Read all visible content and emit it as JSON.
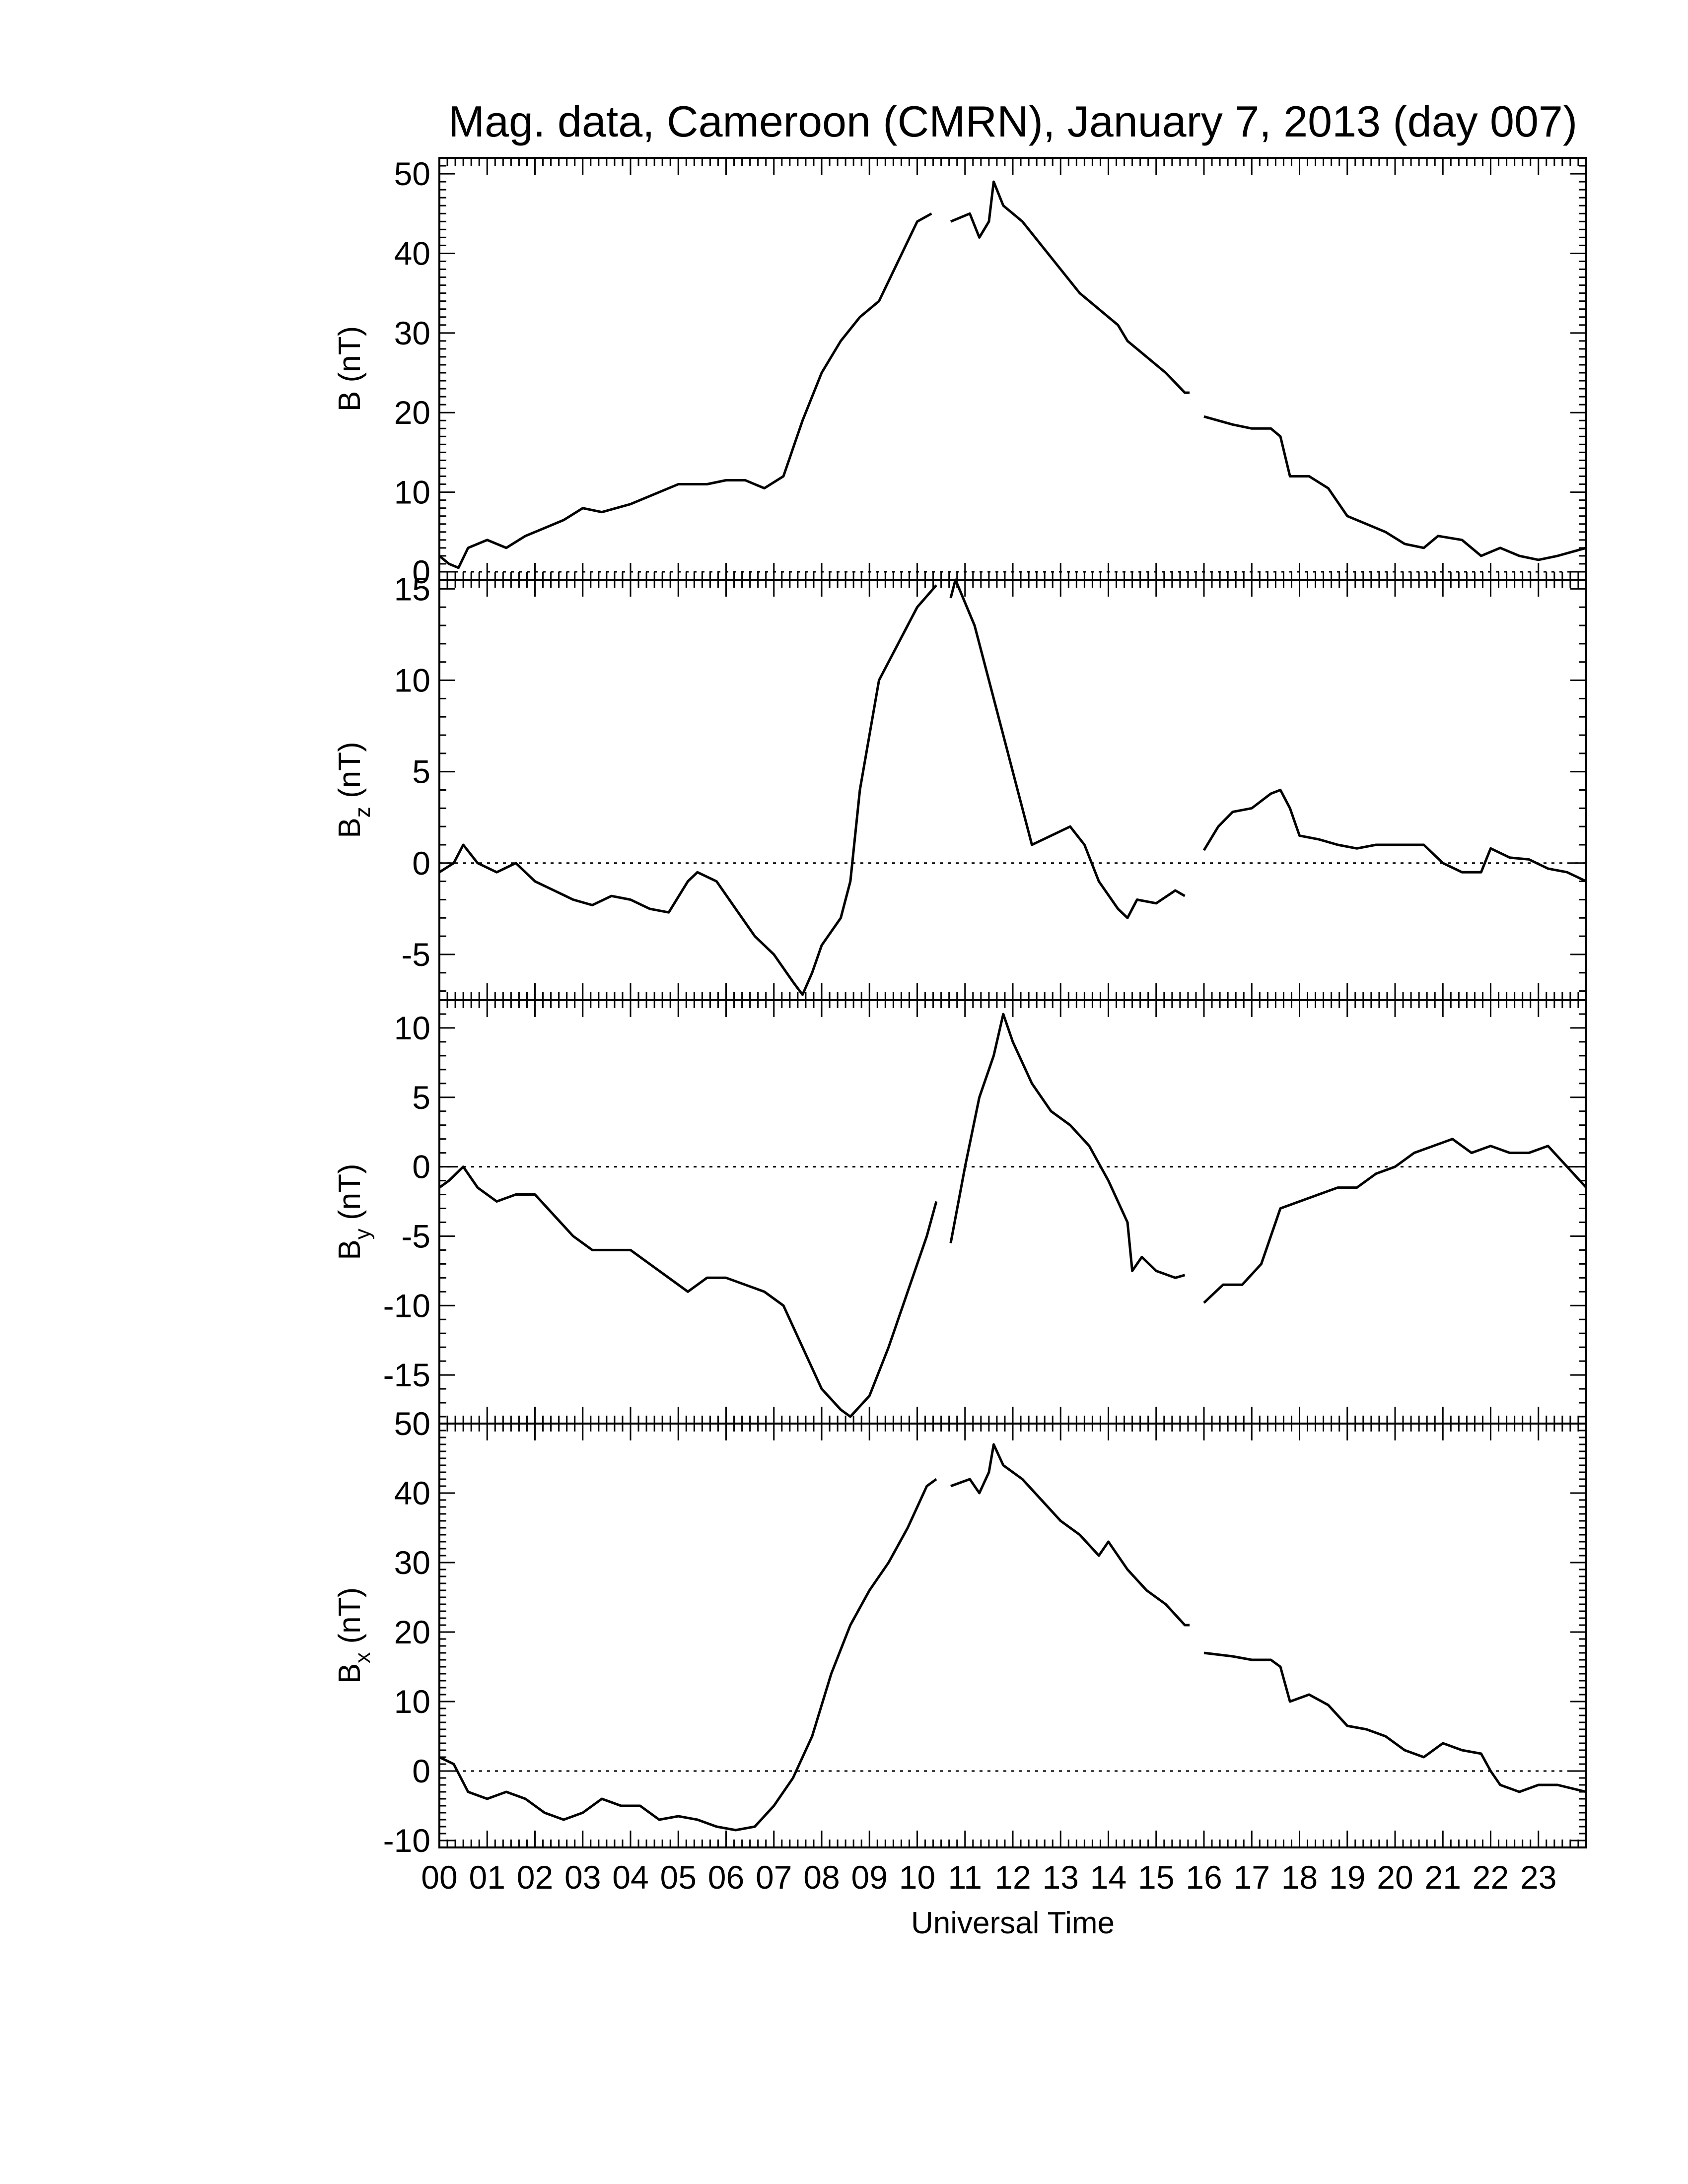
{
  "chart_data": {
    "title": "Mag. data, Cameroon (CMRN), January 7, 2013 (day 007)",
    "type": "line",
    "xlabel": "Universal Time",
    "x_unit": "hour (UT)",
    "xlim": [
      0,
      24
    ],
    "x_tick_labels": [
      "00",
      "01",
      "02",
      "03",
      "04",
      "05",
      "06",
      "07",
      "08",
      "09",
      "10",
      "11",
      "12",
      "13",
      "14",
      "15",
      "16",
      "17",
      "18",
      "19",
      "20",
      "21",
      "22",
      "23"
    ],
    "panels": [
      {
        "key": "B",
        "ylabel_main": "B",
        "ylabel_sub": "",
        "ylabel_unit": " (nT)",
        "ylim": [
          -1,
          52
        ],
        "yticks": [
          0,
          10,
          20,
          30,
          40,
          50
        ],
        "zero_line": true,
        "segments": [
          [
            [
              0,
              2
            ],
            [
              0.2,
              1
            ],
            [
              0.4,
              0.5
            ],
            [
              0.6,
              3
            ],
            [
              1,
              4
            ],
            [
              1.4,
              3
            ],
            [
              1.8,
              4.5
            ],
            [
              2.2,
              5.5
            ],
            [
              2.6,
              6.5
            ],
            [
              3,
              8
            ],
            [
              3.4,
              7.5
            ],
            [
              4,
              8.5
            ],
            [
              4.4,
              9.5
            ],
            [
              5,
              11
            ],
            [
              5.6,
              11
            ],
            [
              6,
              11.5
            ],
            [
              6.4,
              11.5
            ],
            [
              6.8,
              10.5
            ],
            [
              7.2,
              12
            ],
            [
              7.6,
              19
            ],
            [
              8,
              25
            ],
            [
              8.4,
              29
            ],
            [
              8.8,
              32
            ],
            [
              9.2,
              34
            ],
            [
              9.6,
              39
            ],
            [
              10,
              44
            ],
            [
              10.3,
              45
            ]
          ],
          [
            [
              10.7,
              44
            ],
            [
              11.1,
              45
            ],
            [
              11.3,
              42
            ],
            [
              11.5,
              44
            ],
            [
              11.6,
              49
            ],
            [
              11.8,
              46
            ],
            [
              12.2,
              44
            ],
            [
              12.6,
              41
            ],
            [
              13,
              38
            ],
            [
              13.4,
              35
            ],
            [
              13.8,
              33
            ],
            [
              14.2,
              31
            ],
            [
              14.4,
              29
            ],
            [
              14.8,
              27
            ],
            [
              15.2,
              25
            ],
            [
              15.6,
              22.5
            ],
            [
              15.7,
              22.5
            ]
          ],
          [
            [
              16.0,
              19.5
            ],
            [
              16.6,
              18.5
            ],
            [
              17,
              18
            ],
            [
              17.4,
              18
            ],
            [
              17.6,
              17
            ],
            [
              17.8,
              12
            ],
            [
              18.2,
              12
            ],
            [
              18.6,
              10.5
            ],
            [
              19,
              7
            ],
            [
              19.4,
              6
            ],
            [
              19.8,
              5
            ],
            [
              20.2,
              3.5
            ],
            [
              20.6,
              3
            ],
            [
              20.9,
              4.5
            ],
            [
              21.4,
              4
            ],
            [
              21.8,
              2
            ],
            [
              22.2,
              3
            ],
            [
              22.6,
              2
            ],
            [
              23,
              1.5
            ],
            [
              23.4,
              2
            ],
            [
              24,
              3
            ]
          ]
        ]
      },
      {
        "key": "Bz",
        "ylabel_main": "B",
        "ylabel_sub": "z",
        "ylabel_unit": " (nT)",
        "ylim": [
          -7.5,
          15.5
        ],
        "yticks": [
          -5,
          0,
          5,
          10,
          15
        ],
        "zero_line": true,
        "segments": [
          [
            [
              0,
              -0.5
            ],
            [
              0.3,
              0
            ],
            [
              0.5,
              1
            ],
            [
              0.8,
              0
            ],
            [
              1.2,
              -0.5
            ],
            [
              1.6,
              0
            ],
            [
              2,
              -1
            ],
            [
              2.4,
              -1.5
            ],
            [
              2.8,
              -2
            ],
            [
              3.2,
              -2.3
            ],
            [
              3.6,
              -1.8
            ],
            [
              4,
              -2
            ],
            [
              4.4,
              -2.5
            ],
            [
              4.8,
              -2.7
            ],
            [
              5.2,
              -1
            ],
            [
              5.4,
              -0.5
            ],
            [
              5.8,
              -1
            ],
            [
              6.2,
              -2.5
            ],
            [
              6.6,
              -4
            ],
            [
              7,
              -5
            ],
            [
              7.4,
              -6.5
            ],
            [
              7.6,
              -7.2
            ],
            [
              7.8,
              -6
            ],
            [
              8,
              -4.5
            ],
            [
              8.4,
              -3
            ],
            [
              8.6,
              -1
            ],
            [
              8.8,
              4
            ],
            [
              9.2,
              10
            ],
            [
              9.6,
              12
            ],
            [
              10,
              14
            ],
            [
              10.4,
              15.2
            ]
          ],
          [
            [
              10.7,
              14.5
            ],
            [
              10.8,
              15.5
            ],
            [
              11.2,
              13
            ],
            [
              11.5,
              10
            ],
            [
              11.8,
              7
            ],
            [
              12.1,
              4
            ],
            [
              12.4,
              1
            ],
            [
              12.8,
              1.5
            ],
            [
              13.2,
              2
            ],
            [
              13.5,
              1
            ],
            [
              13.8,
              -1
            ],
            [
              14.2,
              -2.5
            ],
            [
              14.4,
              -3
            ],
            [
              14.6,
              -2
            ],
            [
              15,
              -2.2
            ],
            [
              15.4,
              -1.5
            ],
            [
              15.6,
              -1.8
            ]
          ],
          [
            [
              16.0,
              0.7
            ],
            [
              16.3,
              2
            ],
            [
              16.6,
              2.8
            ],
            [
              17,
              3
            ],
            [
              17.4,
              3.8
            ],
            [
              17.6,
              4
            ],
            [
              17.8,
              3
            ],
            [
              18,
              1.5
            ],
            [
              18.4,
              1.3
            ],
            [
              18.8,
              1
            ],
            [
              19.2,
              0.8
            ],
            [
              19.6,
              1
            ],
            [
              20,
              1
            ],
            [
              20.6,
              1
            ],
            [
              21,
              0
            ],
            [
              21.4,
              -0.5
            ],
            [
              21.8,
              -0.5
            ],
            [
              22,
              0.8
            ],
            [
              22.4,
              0.3
            ],
            [
              22.8,
              0.2
            ],
            [
              23.2,
              -0.3
            ],
            [
              23.6,
              -0.5
            ],
            [
              24,
              -1
            ]
          ]
        ]
      },
      {
        "key": "By",
        "ylabel_main": "B",
        "ylabel_sub": "y",
        "ylabel_unit": " (nT)",
        "ylim": [
          -18.5,
          12
        ],
        "yticks": [
          -15,
          -10,
          -5,
          0,
          5,
          10
        ],
        "zero_line": true,
        "segments": [
          [
            [
              0,
              -1.5
            ],
            [
              0.2,
              -1
            ],
            [
              0.5,
              0
            ],
            [
              0.8,
              -1.5
            ],
            [
              1.2,
              -2.5
            ],
            [
              1.6,
              -2
            ],
            [
              2,
              -2
            ],
            [
              2.4,
              -3.5
            ],
            [
              2.8,
              -5
            ],
            [
              3.2,
              -6
            ],
            [
              3.6,
              -6
            ],
            [
              4,
              -6
            ],
            [
              4.4,
              -7
            ],
            [
              4.8,
              -8
            ],
            [
              5.2,
              -9
            ],
            [
              5.6,
              -8
            ],
            [
              6,
              -8
            ],
            [
              6.4,
              -8.5
            ],
            [
              6.8,
              -9
            ],
            [
              7.2,
              -10
            ],
            [
              7.6,
              -13
            ],
            [
              8,
              -16
            ],
            [
              8.4,
              -17.5
            ],
            [
              8.6,
              -18
            ],
            [
              9,
              -16.5
            ],
            [
              9.4,
              -13
            ],
            [
              9.8,
              -9
            ],
            [
              10.2,
              -5
            ],
            [
              10.4,
              -2.5
            ]
          ],
          [
            [
              10.7,
              -5.5
            ],
            [
              11,
              0
            ],
            [
              11.3,
              5
            ],
            [
              11.6,
              8
            ],
            [
              11.8,
              11
            ],
            [
              12,
              9
            ],
            [
              12.4,
              6
            ],
            [
              12.8,
              4
            ],
            [
              13.2,
              3
            ],
            [
              13.6,
              1.5
            ],
            [
              14,
              -1
            ],
            [
              14.4,
              -4
            ],
            [
              14.5,
              -7.5
            ],
            [
              14.7,
              -6.5
            ],
            [
              15,
              -7.5
            ],
            [
              15.4,
              -8
            ],
            [
              15.6,
              -7.8
            ]
          ],
          [
            [
              16.0,
              -9.8
            ],
            [
              16.4,
              -8.5
            ],
            [
              16.8,
              -8.5
            ],
            [
              17.2,
              -7
            ],
            [
              17.6,
              -3
            ],
            [
              18,
              -2.5
            ],
            [
              18.4,
              -2
            ],
            [
              18.8,
              -1.5
            ],
            [
              19.2,
              -1.5
            ],
            [
              19.6,
              -0.5
            ],
            [
              20,
              0
            ],
            [
              20.4,
              1
            ],
            [
              20.8,
              1.5
            ],
            [
              21.2,
              2
            ],
            [
              21.6,
              1
            ],
            [
              22,
              1.5
            ],
            [
              22.4,
              1
            ],
            [
              22.8,
              1
            ],
            [
              23.2,
              1.5
            ],
            [
              23.6,
              0
            ],
            [
              24,
              -1.5
            ]
          ]
        ]
      },
      {
        "key": "Bx",
        "ylabel_main": "B",
        "ylabel_sub": "x",
        "ylabel_unit": " (nT)",
        "ylim": [
          -11,
          50
        ],
        "yticks": [
          -10,
          0,
          10,
          20,
          30,
          40,
          50
        ],
        "zero_line": true,
        "segments": [
          [
            [
              0,
              2
            ],
            [
              0.3,
              1
            ],
            [
              0.6,
              -3
            ],
            [
              1,
              -4
            ],
            [
              1.4,
              -3
            ],
            [
              1.8,
              -4
            ],
            [
              2.2,
              -6
            ],
            [
              2.6,
              -7
            ],
            [
              3,
              -6
            ],
            [
              3.4,
              -4
            ],
            [
              3.8,
              -5
            ],
            [
              4.2,
              -5
            ],
            [
              4.6,
              -7
            ],
            [
              5,
              -6.5
            ],
            [
              5.4,
              -7
            ],
            [
              5.8,
              -8
            ],
            [
              6.2,
              -8.5
            ],
            [
              6.6,
              -8
            ],
            [
              7,
              -5
            ],
            [
              7.4,
              -1
            ],
            [
              7.8,
              5
            ],
            [
              8.2,
              14
            ],
            [
              8.6,
              21
            ],
            [
              9,
              26
            ],
            [
              9.4,
              30
            ],
            [
              9.8,
              35
            ],
            [
              10.2,
              41
            ],
            [
              10.4,
              42
            ]
          ],
          [
            [
              10.7,
              41
            ],
            [
              11.1,
              42
            ],
            [
              11.3,
              40
            ],
            [
              11.5,
              43
            ],
            [
              11.6,
              47
            ],
            [
              11.8,
              44
            ],
            [
              12.2,
              42
            ],
            [
              12.6,
              39
            ],
            [
              13,
              36
            ],
            [
              13.4,
              34
            ],
            [
              13.8,
              31
            ],
            [
              14,
              33
            ],
            [
              14.4,
              29
            ],
            [
              14.8,
              26
            ],
            [
              15.2,
              24
            ],
            [
              15.6,
              21
            ],
            [
              15.7,
              21
            ]
          ],
          [
            [
              16.0,
              17
            ],
            [
              16.6,
              16.5
            ],
            [
              17,
              16
            ],
            [
              17.4,
              16
            ],
            [
              17.6,
              15
            ],
            [
              17.8,
              10
            ],
            [
              18.2,
              11
            ],
            [
              18.6,
              9.5
            ],
            [
              19,
              6.5
            ],
            [
              19.4,
              6
            ],
            [
              19.8,
              5
            ],
            [
              20.2,
              3
            ],
            [
              20.6,
              2
            ],
            [
              21,
              4
            ],
            [
              21.4,
              3
            ],
            [
              21.8,
              2.5
            ],
            [
              22,
              0
            ],
            [
              22.2,
              -2
            ],
            [
              22.6,
              -3
            ],
            [
              23,
              -2
            ],
            [
              23.4,
              -2
            ],
            [
              24,
              -3
            ]
          ]
        ]
      }
    ]
  }
}
